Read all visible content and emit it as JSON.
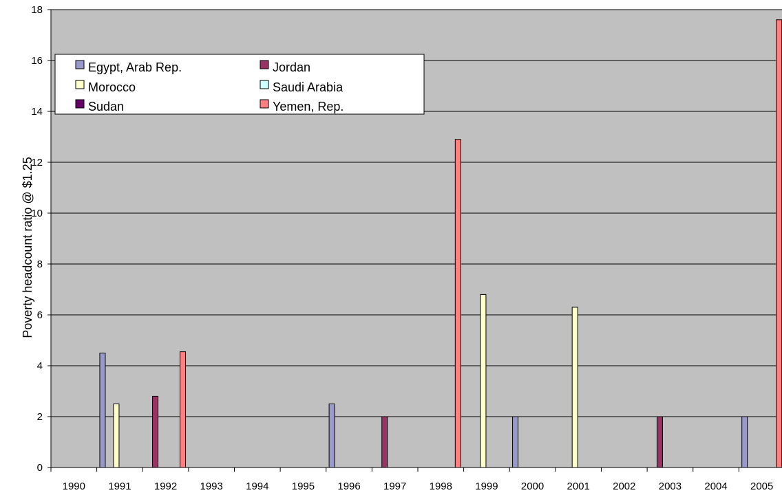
{
  "chart_data": {
    "type": "bar",
    "title": "",
    "xlabel": "",
    "ylabel": "Poverty headcount ratio @ $1.25",
    "ylim": [
      0,
      18
    ],
    "yticks": [
      0,
      2,
      4,
      6,
      8,
      10,
      12,
      14,
      16,
      18
    ],
    "grid": true,
    "legend_position": "top-left",
    "categories": [
      "1990",
      "1991",
      "1992",
      "1993",
      "1994",
      "1995",
      "1996",
      "1997",
      "1998",
      "1999",
      "2000",
      "2001",
      "2002",
      "2003",
      "2004",
      "2005"
    ],
    "series": [
      {
        "name": "Egypt, Arab Rep.",
        "color": "#9999cc",
        "values": [
          null,
          4.5,
          null,
          null,
          null,
          null,
          2.5,
          null,
          null,
          null,
          2.0,
          null,
          null,
          null,
          null,
          2.0
        ]
      },
      {
        "name": "Jordan",
        "color": "#993366",
        "values": [
          null,
          null,
          2.8,
          null,
          null,
          null,
          null,
          2.0,
          null,
          null,
          null,
          null,
          null,
          2.0,
          null,
          null
        ]
      },
      {
        "name": "Morocco",
        "color": "#ffffcc",
        "values": [
          null,
          2.5,
          null,
          null,
          null,
          null,
          null,
          null,
          null,
          6.8,
          null,
          6.3,
          null,
          null,
          null,
          null
        ]
      },
      {
        "name": "Saudi Arabia",
        "color": "#ccffff",
        "values": [
          null,
          null,
          null,
          null,
          null,
          null,
          null,
          null,
          null,
          null,
          null,
          null,
          null,
          null,
          null,
          null
        ]
      },
      {
        "name": "Sudan",
        "color": "#660066",
        "values": [
          null,
          null,
          null,
          null,
          null,
          null,
          null,
          null,
          null,
          null,
          null,
          null,
          null,
          null,
          null,
          null
        ]
      },
      {
        "name": "Yemen, Rep.",
        "color": "#ff8080",
        "values": [
          null,
          null,
          4.55,
          null,
          null,
          null,
          null,
          null,
          12.9,
          null,
          null,
          null,
          null,
          null,
          null,
          17.6
        ]
      }
    ]
  }
}
